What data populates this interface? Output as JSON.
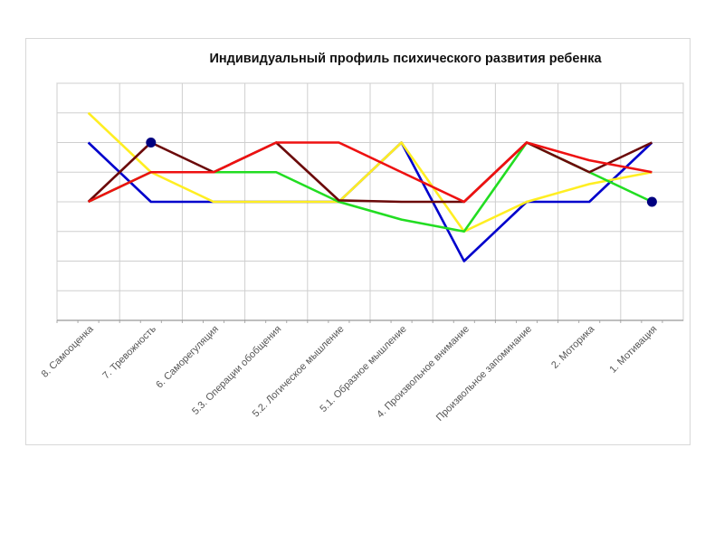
{
  "chart_data": {
    "type": "line",
    "title": "Индивидуальный профиль психического развития ребенка",
    "xlabel": "",
    "ylabel": "",
    "ylim": [
      0,
      8
    ],
    "grid": true,
    "legend": "none",
    "categories": [
      "8. Самооценка",
      "7. Тревожность",
      "6. Саморегуляция",
      "5.3. Операции обобщения",
      "5.2. Логическое мышление",
      "5.1. Образное мышление",
      "4. Произвольное внимание",
      "Произвольное запоминание",
      "2. Моторика",
      "1. Мотивация"
    ],
    "series": [
      {
        "name": "blue",
        "color": "#0000cc",
        "values": [
          6,
          4,
          4,
          4,
          4,
          6,
          2,
          4,
          4,
          6
        ]
      },
      {
        "name": "yellow",
        "color": "#ffee22",
        "values": [
          7,
          5,
          4,
          4,
          4,
          6,
          3,
          4,
          4.6,
          5
        ]
      },
      {
        "name": "green",
        "color": "#22dd22",
        "values": [
          4,
          5,
          5,
          5,
          4,
          3.4,
          3,
          6,
          5,
          4
        ]
      },
      {
        "name": "dark-red",
        "color": "#6b0a0a",
        "values": [
          4,
          6,
          5,
          6,
          4.05,
          4,
          4,
          6,
          5,
          6
        ]
      },
      {
        "name": "red",
        "color": "#ee1111",
        "values": [
          4,
          5,
          5,
          6,
          6,
          5,
          4,
          6,
          5.4,
          5
        ]
      }
    ],
    "markers": [
      {
        "category_index": 1,
        "value": 6,
        "color": "#000080"
      },
      {
        "category_index": 9,
        "value": 4,
        "color": "#000080"
      }
    ]
  }
}
